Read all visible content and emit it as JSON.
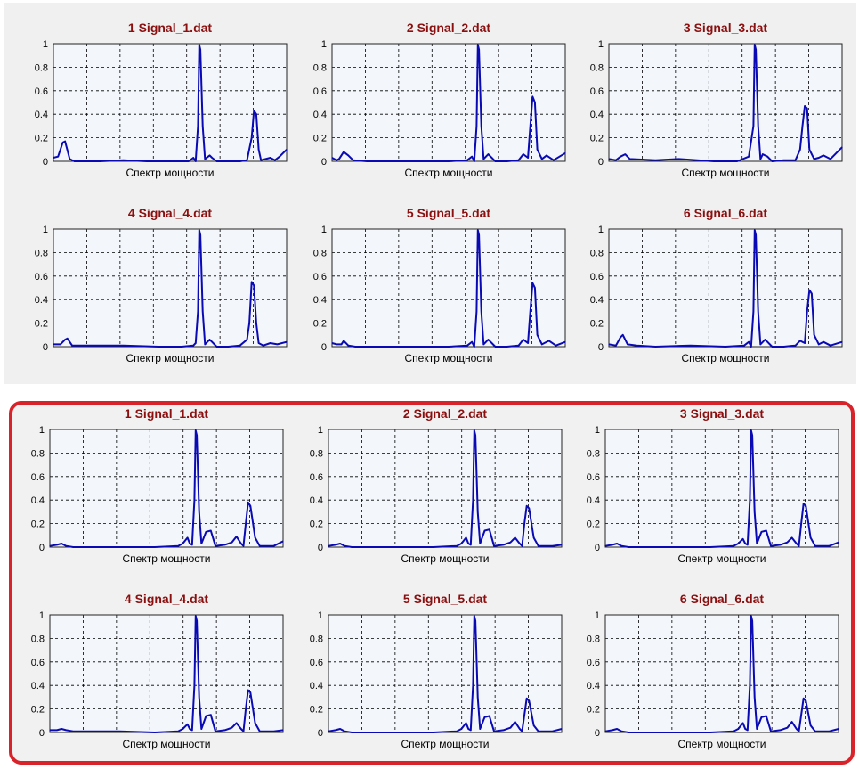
{
  "xlabel": "Спектр мощности",
  "y_ticks": [
    "0",
    "0.2",
    "0.4",
    "0.6",
    "0.8",
    "1"
  ],
  "colors": {
    "line": "#0a0ab4",
    "plot_bg": "#f3f6fb",
    "grid": "#000000",
    "title": "#8b0f0f",
    "highlight": "#d8232a"
  },
  "top_group": {
    "charts": [
      {
        "title": "1 Signal_1.dat"
      },
      {
        "title": "2 Signal_2.dat"
      },
      {
        "title": "3 Signal_3.dat"
      },
      {
        "title": "4 Signal_4.dat"
      },
      {
        "title": "5 Signal_5.dat"
      },
      {
        "title": "6 Signal_6.dat"
      }
    ]
  },
  "bottom_group": {
    "charts": [
      {
        "title": "1 Signal_1.dat"
      },
      {
        "title": "2 Signal_2.dat"
      },
      {
        "title": "3 Signal_3.dat"
      },
      {
        "title": "4 Signal_4.dat"
      },
      {
        "title": "5 Signal_5.dat"
      },
      {
        "title": "6 Signal_6.dat"
      }
    ]
  },
  "chart_data": [
    {
      "type": "line",
      "title": "1 Signal_1.dat",
      "xlabel": "Спектр мощности",
      "ylim": [
        0,
        1
      ],
      "xlim": [
        0,
        1
      ],
      "x": [
        0,
        0.02,
        0.04,
        0.05,
        0.07,
        0.09,
        0.12,
        0.2,
        0.3,
        0.4,
        0.5,
        0.58,
        0.6,
        0.61,
        0.62,
        0.625,
        0.63,
        0.64,
        0.65,
        0.67,
        0.68,
        0.7,
        0.75,
        0.8,
        0.83,
        0.85,
        0.86,
        0.87,
        0.88,
        0.89,
        0.91,
        0.93,
        0.95,
        0.97,
        1
      ],
      "y": [
        0.03,
        0.04,
        0.16,
        0.17,
        0.02,
        0,
        0,
        0,
        0.01,
        0,
        0,
        0,
        0.03,
        0,
        0.3,
        0.99,
        0.95,
        0.3,
        0.02,
        0.05,
        0.03,
        0,
        0,
        0,
        0.01,
        0.2,
        0.43,
        0.4,
        0.1,
        0.01,
        0.02,
        0.03,
        0.01,
        0.04,
        0.1
      ]
    },
    {
      "type": "line",
      "title": "2 Signal_2.dat",
      "xlabel": "Спектр мощности",
      "ylim": [
        0,
        1
      ],
      "xlim": [
        0,
        1
      ],
      "x": [
        0,
        0.02,
        0.03,
        0.05,
        0.07,
        0.09,
        0.15,
        0.3,
        0.5,
        0.58,
        0.6,
        0.61,
        0.62,
        0.625,
        0.63,
        0.64,
        0.65,
        0.67,
        0.68,
        0.7,
        0.75,
        0.8,
        0.82,
        0.84,
        0.85,
        0.86,
        0.87,
        0.88,
        0.9,
        0.92,
        0.95,
        1
      ],
      "y": [
        0.03,
        0.01,
        0.02,
        0.08,
        0.05,
        0.01,
        0,
        0,
        0,
        0.01,
        0.04,
        0,
        0.3,
        0.99,
        0.95,
        0.3,
        0.02,
        0.06,
        0.04,
        0,
        0,
        0.01,
        0.06,
        0.03,
        0.3,
        0.55,
        0.5,
        0.1,
        0.02,
        0.05,
        0.01,
        0.07
      ]
    },
    {
      "type": "line",
      "title": "3 Signal_3.dat",
      "xlabel": "Спектр мощности",
      "ylim": [
        0,
        1
      ],
      "xlim": [
        0,
        1
      ],
      "x": [
        0,
        0.03,
        0.05,
        0.07,
        0.09,
        0.2,
        0.3,
        0.45,
        0.55,
        0.6,
        0.62,
        0.625,
        0.63,
        0.64,
        0.65,
        0.66,
        0.68,
        0.7,
        0.75,
        0.8,
        0.82,
        0.83,
        0.84,
        0.85,
        0.86,
        0.88,
        0.9,
        0.92,
        0.95,
        1
      ],
      "y": [
        0.02,
        0.01,
        0.04,
        0.06,
        0.02,
        0.01,
        0.02,
        0,
        0,
        0.04,
        0.3,
        0.99,
        0.95,
        0.3,
        0.02,
        0.06,
        0.04,
        0,
        0.01,
        0.01,
        0.1,
        0.3,
        0.47,
        0.45,
        0.1,
        0.02,
        0.03,
        0.05,
        0.02,
        0.12
      ]
    },
    {
      "type": "line",
      "title": "4 Signal_4.dat",
      "xlabel": "Спектр мощности",
      "ylim": [
        0,
        1
      ],
      "xlim": [
        0,
        1
      ],
      "x": [
        0,
        0.03,
        0.05,
        0.06,
        0.08,
        0.12,
        0.2,
        0.3,
        0.45,
        0.55,
        0.6,
        0.61,
        0.62,
        0.625,
        0.63,
        0.64,
        0.65,
        0.67,
        0.68,
        0.7,
        0.75,
        0.8,
        0.83,
        0.84,
        0.85,
        0.86,
        0.87,
        0.88,
        0.9,
        0.93,
        0.96,
        1
      ],
      "y": [
        0.02,
        0.02,
        0.06,
        0.07,
        0.01,
        0.01,
        0.01,
        0.01,
        0,
        0,
        0.01,
        0.03,
        0.3,
        0.99,
        0.95,
        0.3,
        0.02,
        0.06,
        0.04,
        0,
        0,
        0.01,
        0.06,
        0.2,
        0.55,
        0.52,
        0.2,
        0.03,
        0.01,
        0.03,
        0.02,
        0.04
      ]
    },
    {
      "type": "line",
      "title": "5 Signal_5.dat",
      "xlabel": "Спектр мощности",
      "ylim": [
        0,
        1
      ],
      "xlim": [
        0,
        1
      ],
      "x": [
        0,
        0.02,
        0.04,
        0.05,
        0.07,
        0.1,
        0.2,
        0.35,
        0.5,
        0.58,
        0.6,
        0.61,
        0.62,
        0.625,
        0.63,
        0.64,
        0.65,
        0.67,
        0.68,
        0.7,
        0.75,
        0.8,
        0.82,
        0.84,
        0.85,
        0.86,
        0.87,
        0.88,
        0.9,
        0.93,
        0.96,
        1
      ],
      "y": [
        0.03,
        0.02,
        0.02,
        0.05,
        0.01,
        0,
        0,
        0,
        0,
        0.01,
        0.04,
        0,
        0.3,
        0.99,
        0.95,
        0.3,
        0.02,
        0.06,
        0.04,
        0,
        0,
        0.01,
        0.06,
        0.03,
        0.3,
        0.54,
        0.5,
        0.1,
        0.02,
        0.05,
        0.01,
        0.04
      ]
    },
    {
      "type": "line",
      "title": "6 Signal_6.dat",
      "xlabel": "Спектр мощности",
      "ylim": [
        0,
        1
      ],
      "xlim": [
        0,
        1
      ],
      "x": [
        0,
        0.03,
        0.05,
        0.06,
        0.08,
        0.12,
        0.2,
        0.35,
        0.5,
        0.58,
        0.6,
        0.61,
        0.62,
        0.625,
        0.63,
        0.64,
        0.65,
        0.67,
        0.68,
        0.7,
        0.75,
        0.8,
        0.82,
        0.84,
        0.85,
        0.86,
        0.87,
        0.88,
        0.9,
        0.92,
        0.95,
        1
      ],
      "y": [
        0.02,
        0.01,
        0.08,
        0.1,
        0.02,
        0.01,
        0,
        0.01,
        0,
        0.01,
        0.04,
        0,
        0.3,
        0.99,
        0.95,
        0.3,
        0.02,
        0.06,
        0.04,
        0,
        0,
        0.01,
        0.05,
        0.03,
        0.3,
        0.48,
        0.45,
        0.1,
        0.02,
        0.04,
        0.01,
        0.04
      ]
    },
    {
      "type": "line",
      "title": "1 Signal_1.dat",
      "xlabel": "Спектр мощности",
      "ylim": [
        0,
        1
      ],
      "xlim": [
        0,
        1
      ],
      "x": [
        0,
        0.03,
        0.05,
        0.07,
        0.1,
        0.2,
        0.3,
        0.45,
        0.55,
        0.57,
        0.59,
        0.6,
        0.61,
        0.62,
        0.625,
        0.63,
        0.64,
        0.65,
        0.67,
        0.69,
        0.71,
        0.75,
        0.78,
        0.8,
        0.82,
        0.83,
        0.84,
        0.85,
        0.86,
        0.88,
        0.9,
        0.93,
        0.96,
        1
      ],
      "y": [
        0.01,
        0.02,
        0.03,
        0.01,
        0,
        0,
        0,
        0,
        0.01,
        0.03,
        0.08,
        0.03,
        0.02,
        0.4,
        0.99,
        0.95,
        0.3,
        0.03,
        0.13,
        0.14,
        0.01,
        0.02,
        0.04,
        0.09,
        0.03,
        0.01,
        0.2,
        0.38,
        0.35,
        0.08,
        0.01,
        0.01,
        0.01,
        0.05
      ]
    },
    {
      "type": "line",
      "title": "2 Signal_2.dat",
      "xlabel": "Спектр мощности",
      "ylim": [
        0,
        1
      ],
      "xlim": [
        0,
        1
      ],
      "x": [
        0,
        0.03,
        0.05,
        0.07,
        0.1,
        0.2,
        0.3,
        0.45,
        0.55,
        0.57,
        0.59,
        0.6,
        0.61,
        0.62,
        0.625,
        0.63,
        0.64,
        0.65,
        0.67,
        0.69,
        0.71,
        0.75,
        0.78,
        0.8,
        0.82,
        0.83,
        0.84,
        0.85,
        0.86,
        0.88,
        0.9,
        0.93,
        0.96,
        1
      ],
      "y": [
        0.01,
        0.02,
        0.03,
        0.01,
        0,
        0,
        0,
        0,
        0.01,
        0.03,
        0.08,
        0.03,
        0.02,
        0.4,
        0.99,
        0.95,
        0.3,
        0.03,
        0.14,
        0.15,
        0.01,
        0.02,
        0.04,
        0.08,
        0.03,
        0.01,
        0.2,
        0.35,
        0.33,
        0.08,
        0.01,
        0.01,
        0.01,
        0.02
      ]
    },
    {
      "type": "line",
      "title": "3 Signal_3.dat",
      "xlabel": "Спектр мощности",
      "ylim": [
        0,
        1
      ],
      "xlim": [
        0,
        1
      ],
      "x": [
        0,
        0.03,
        0.05,
        0.07,
        0.1,
        0.2,
        0.3,
        0.45,
        0.55,
        0.57,
        0.59,
        0.6,
        0.61,
        0.62,
        0.625,
        0.63,
        0.64,
        0.65,
        0.67,
        0.69,
        0.71,
        0.75,
        0.78,
        0.8,
        0.82,
        0.83,
        0.84,
        0.85,
        0.86,
        0.88,
        0.9,
        0.93,
        0.96,
        1
      ],
      "y": [
        0.01,
        0.02,
        0.03,
        0.01,
        0,
        0,
        0,
        0,
        0.01,
        0.03,
        0.07,
        0.03,
        0.02,
        0.4,
        0.99,
        0.95,
        0.3,
        0.03,
        0.13,
        0.14,
        0.01,
        0.02,
        0.04,
        0.08,
        0.03,
        0.01,
        0.2,
        0.37,
        0.35,
        0.08,
        0.01,
        0.01,
        0.01,
        0.04
      ]
    },
    {
      "type": "line",
      "title": "4 Signal_4.dat",
      "xlabel": "Спектр мощности",
      "ylim": [
        0,
        1
      ],
      "xlim": [
        0,
        1
      ],
      "x": [
        0,
        0.03,
        0.05,
        0.07,
        0.1,
        0.2,
        0.3,
        0.45,
        0.55,
        0.57,
        0.59,
        0.6,
        0.61,
        0.62,
        0.625,
        0.63,
        0.64,
        0.65,
        0.67,
        0.69,
        0.71,
        0.75,
        0.78,
        0.8,
        0.82,
        0.83,
        0.84,
        0.85,
        0.86,
        0.88,
        0.9,
        0.93,
        0.96,
        1
      ],
      "y": [
        0.02,
        0.02,
        0.03,
        0.02,
        0.01,
        0.01,
        0.01,
        0,
        0.01,
        0.03,
        0.07,
        0.03,
        0.02,
        0.4,
        0.99,
        0.95,
        0.3,
        0.03,
        0.14,
        0.15,
        0.01,
        0.02,
        0.04,
        0.08,
        0.03,
        0.01,
        0.2,
        0.36,
        0.34,
        0.08,
        0.01,
        0.01,
        0.01,
        0.02
      ]
    },
    {
      "type": "line",
      "title": "5 Signal_5.dat",
      "xlabel": "Спектр мощности",
      "ylim": [
        0,
        1
      ],
      "xlim": [
        0,
        1
      ],
      "x": [
        0,
        0.03,
        0.05,
        0.07,
        0.1,
        0.2,
        0.3,
        0.45,
        0.55,
        0.57,
        0.59,
        0.6,
        0.61,
        0.62,
        0.625,
        0.63,
        0.64,
        0.65,
        0.67,
        0.69,
        0.71,
        0.75,
        0.78,
        0.8,
        0.82,
        0.83,
        0.84,
        0.85,
        0.86,
        0.88,
        0.9,
        0.93,
        0.96,
        1
      ],
      "y": [
        0.01,
        0.02,
        0.03,
        0.01,
        0,
        0,
        0,
        0,
        0.01,
        0.03,
        0.08,
        0.03,
        0.02,
        0.4,
        0.99,
        0.95,
        0.3,
        0.03,
        0.13,
        0.14,
        0.01,
        0.02,
        0.04,
        0.09,
        0.03,
        0.01,
        0.15,
        0.29,
        0.27,
        0.06,
        0.01,
        0.01,
        0.01,
        0.03
      ]
    },
    {
      "type": "line",
      "title": "6 Signal_6.dat",
      "xlabel": "Спектр мощности",
      "ylim": [
        0,
        1
      ],
      "xlim": [
        0,
        1
      ],
      "x": [
        0,
        0.03,
        0.05,
        0.07,
        0.1,
        0.2,
        0.3,
        0.45,
        0.55,
        0.57,
        0.59,
        0.6,
        0.61,
        0.62,
        0.625,
        0.63,
        0.64,
        0.65,
        0.67,
        0.69,
        0.71,
        0.75,
        0.78,
        0.8,
        0.82,
        0.83,
        0.84,
        0.85,
        0.86,
        0.88,
        0.9,
        0.93,
        0.96,
        1
      ],
      "y": [
        0.01,
        0.02,
        0.03,
        0.01,
        0,
        0,
        0,
        0,
        0.01,
        0.03,
        0.08,
        0.03,
        0.02,
        0.4,
        0.99,
        0.95,
        0.3,
        0.03,
        0.13,
        0.14,
        0.01,
        0.02,
        0.04,
        0.09,
        0.03,
        0.01,
        0.15,
        0.29,
        0.27,
        0.06,
        0.01,
        0.01,
        0.01,
        0.03
      ]
    }
  ]
}
